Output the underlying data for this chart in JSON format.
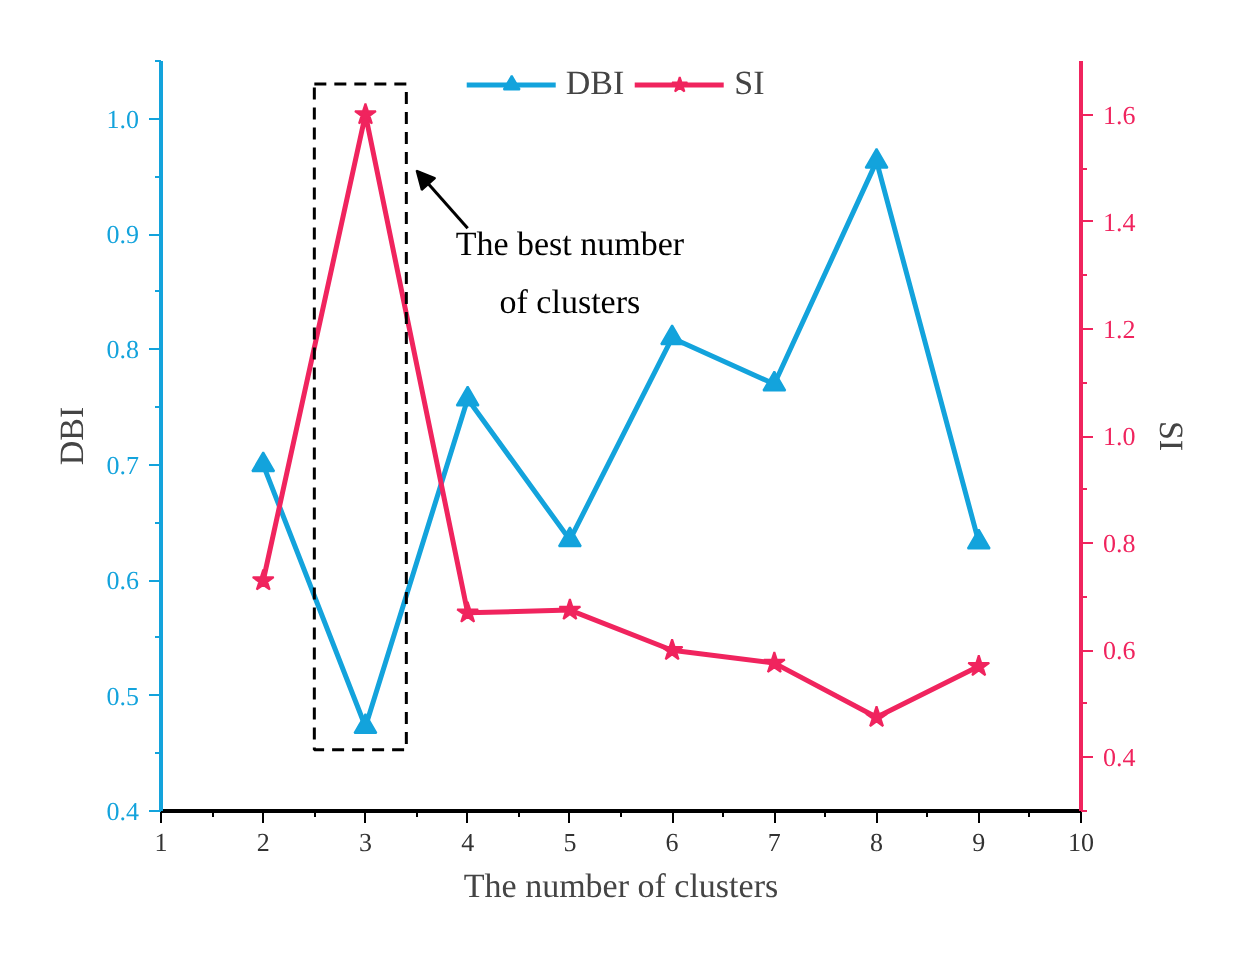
{
  "chart_data": {
    "type": "line",
    "xlabel": "The number of clusters",
    "ylabel": "DBI",
    "y2label": "SI",
    "x": [
      2,
      3,
      4,
      5,
      6,
      7,
      8,
      9
    ],
    "series": [
      {
        "name": "DBI",
        "color": "#13a3dc",
        "values": [
          0.7,
          0.473,
          0.757,
          0.635,
          0.81,
          0.77,
          0.963,
          0.633
        ],
        "marker": "triangle"
      },
      {
        "name": "SI",
        "color": "#f0245e",
        "values": [
          0.73,
          1.6,
          0.67,
          0.675,
          0.6,
          0.576,
          0.475,
          0.57
        ],
        "marker": "star",
        "axis": "y2"
      }
    ],
    "xlim": [
      1,
      10
    ],
    "xticks": [
      1,
      2,
      3,
      4,
      5,
      6,
      7,
      8,
      9,
      10
    ],
    "ylim": [
      0.4,
      1.05
    ],
    "yticks": [
      0.4,
      0.5,
      0.6,
      0.7,
      0.8,
      0.9,
      {
        "value": 1,
        "label": "1.0"
      }
    ],
    "y2lim": [
      0.3,
      1.7
    ],
    "y2ticks": [
      0.4,
      0.6,
      0.8,
      {
        "value": 1,
        "label": "1.0"
      },
      1.2,
      1.4,
      1.6
    ],
    "annotations": [
      "The best number\nof clusters"
    ],
    "grid": false,
    "legend": "top",
    "line_style": "solid"
  }
}
